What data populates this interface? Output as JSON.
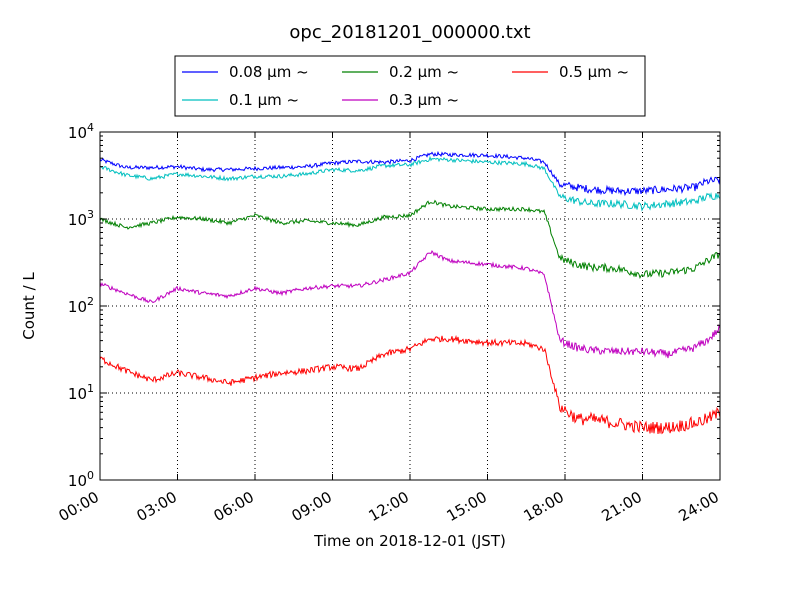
{
  "chart_data": {
    "type": "line",
    "title": "opc_20181201_000000.txt",
    "xlabel": "Time on 2018-12-01 (JST)",
    "ylabel": "Count / L",
    "yscale": "log",
    "ylim": [
      1,
      10000
    ],
    "xlim": [
      "00:00",
      "24:00"
    ],
    "x_tick_labels": [
      "00:00",
      "03:00",
      "06:00",
      "09:00",
      "12:00",
      "15:00",
      "18:00",
      "21:00",
      "24:00"
    ],
    "y_tick_labels": [
      {
        "base": "10",
        "exp": "0"
      },
      {
        "base": "10",
        "exp": "1"
      },
      {
        "base": "10",
        "exp": "2"
      },
      {
        "base": "10",
        "exp": "3"
      },
      {
        "base": "10",
        "exp": "4"
      }
    ],
    "grid": true,
    "legend_position": "top-center",
    "x_hours": [
      0,
      1,
      2,
      3,
      4,
      5,
      6,
      7,
      8,
      9,
      10,
      11,
      12,
      12.8,
      13.5,
      15,
      16.5,
      17.2,
      17.8,
      18.5,
      19,
      20,
      21,
      22,
      23,
      23.5,
      24
    ],
    "series": [
      {
        "name": "0.08 μm ~",
        "color": "#0000ff",
        "values": [
          4800,
          3900,
          3900,
          4000,
          3700,
          3700,
          3800,
          3900,
          4000,
          4400,
          4600,
          4500,
          4700,
          5600,
          5500,
          5400,
          5000,
          4500,
          2500,
          2300,
          2200,
          2100,
          2100,
          2200,
          2300,
          2700,
          2800
        ]
      },
      {
        "name": "0.1 μm ~",
        "color": "#00bfbf",
        "values": [
          4000,
          3200,
          2900,
          3300,
          3100,
          2900,
          3100,
          3100,
          3300,
          3700,
          3600,
          4100,
          4200,
          4900,
          4800,
          4500,
          4300,
          3800,
          1800,
          1600,
          1500,
          1500,
          1400,
          1500,
          1600,
          1800,
          1900
        ]
      },
      {
        "name": "0.2 μm ~",
        "color": "#008000",
        "values": [
          1000,
          800,
          900,
          1050,
          1000,
          900,
          1100,
          900,
          950,
          900,
          850,
          1050,
          1100,
          1600,
          1400,
          1300,
          1300,
          1200,
          350,
          300,
          280,
          270,
          230,
          240,
          270,
          330,
          400
        ]
      },
      {
        "name": "0.3 μm ~",
        "color": "#bf00bf",
        "values": [
          180,
          140,
          110,
          160,
          140,
          130,
          160,
          140,
          160,
          170,
          170,
          200,
          240,
          420,
          330,
          300,
          270,
          230,
          40,
          33,
          31,
          30,
          30,
          28,
          33,
          40,
          55
        ]
      },
      {
        "name": "0.5 μm ~",
        "color": "#ff0000",
        "values": [
          25,
          18,
          14,
          17,
          15,
          13,
          15,
          17,
          18,
          20,
          19,
          28,
          32,
          42,
          42,
          38,
          37,
          32,
          7,
          5,
          5,
          4.5,
          4,
          4,
          4.5,
          5,
          6
        ]
      }
    ]
  }
}
